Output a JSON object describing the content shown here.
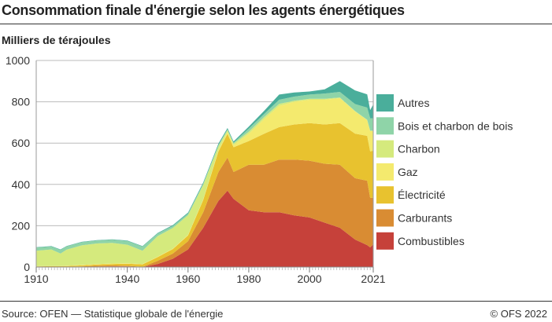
{
  "title": "Consommation finale d'énergie selon les agents énergétiques",
  "subtitle": "Milliers de térajoules",
  "source": "Source: OFEN — Statistique globale de l'énergie",
  "copyright": "© OFS 2022",
  "chart_data": {
    "type": "area",
    "stacked": true,
    "title": "Consommation finale d'énergie selon les agents énergétiques",
    "ylabel": "Milliers de térajoules",
    "ylim": [
      0,
      1000
    ],
    "yticks": [
      0,
      200,
      400,
      600,
      800,
      1000
    ],
    "xlim": [
      1910,
      2021
    ],
    "xticks": [
      1910,
      1940,
      1960,
      1980,
      2000,
      2021
    ],
    "grid": true,
    "legend_position": "right",
    "x": [
      1910,
      1915,
      1918,
      1920,
      1925,
      1930,
      1935,
      1940,
      1945,
      1950,
      1955,
      1960,
      1965,
      1970,
      1973,
      1975,
      1980,
      1985,
      1990,
      1995,
      2000,
      2005,
      2010,
      2015,
      2019,
      2020,
      2021
    ],
    "series": [
      {
        "name": "Combustibles",
        "color": "#c6413a",
        "values": [
          0,
          0,
          0,
          0,
          1,
          2,
          3,
          3,
          0,
          15,
          40,
          85,
          190,
          320,
          370,
          330,
          275,
          265,
          265,
          250,
          240,
          215,
          190,
          133,
          106,
          95,
          110
        ]
      },
      {
        "name": "Carburants",
        "color": "#d98c33",
        "values": [
          1,
          1,
          1,
          1,
          2,
          4,
          5,
          3,
          1,
          15,
          25,
          40,
          75,
          140,
          160,
          130,
          220,
          230,
          255,
          270,
          275,
          285,
          305,
          297,
          312,
          240,
          225
        ]
      },
      {
        "name": "Électricité",
        "color": "#e8c22f",
        "values": [
          2,
          3,
          3,
          4,
          5,
          6,
          7,
          10,
          12,
          18,
          22,
          28,
          60,
          100,
          115,
          120,
          115,
          150,
          157,
          170,
          182,
          190,
          202,
          216,
          217,
          225,
          228
        ]
      },
      {
        "name": "Gaz",
        "color": "#f4ea6e",
        "values": [
          1,
          1,
          1,
          1,
          2,
          2,
          2,
          2,
          1,
          2,
          2,
          3,
          3,
          5,
          8,
          10,
          35,
          70,
          103,
          110,
          113,
          120,
          121,
          107,
          76,
          98,
          95
        ]
      },
      {
        "name": "Charbon",
        "color": "#d5ea7d",
        "values": [
          75,
          80,
          60,
          78,
          95,
          100,
          100,
          90,
          65,
          100,
          100,
          95,
          70,
          20,
          10,
          8,
          10,
          10,
          10,
          5,
          5,
          5,
          3,
          2,
          2,
          2,
          2
        ]
      },
      {
        "name": "Bois et charbon de bois",
        "color": "#8fd4a8",
        "values": [
          15,
          14,
          18,
          16,
          15,
          14,
          15,
          18,
          20,
          12,
          10,
          8,
          6,
          5,
          4,
          4,
          15,
          15,
          20,
          20,
          20,
          25,
          27,
          34,
          59,
          60,
          60
        ]
      },
      {
        "name": "Autres",
        "color": "#4aae9b",
        "values": [
          2,
          2,
          2,
          2,
          2,
          2,
          2,
          2,
          2,
          3,
          4,
          5,
          6,
          8,
          6,
          6,
          10,
          15,
          25,
          20,
          15,
          20,
          52,
          66,
          64,
          40,
          67
        ]
      }
    ]
  }
}
